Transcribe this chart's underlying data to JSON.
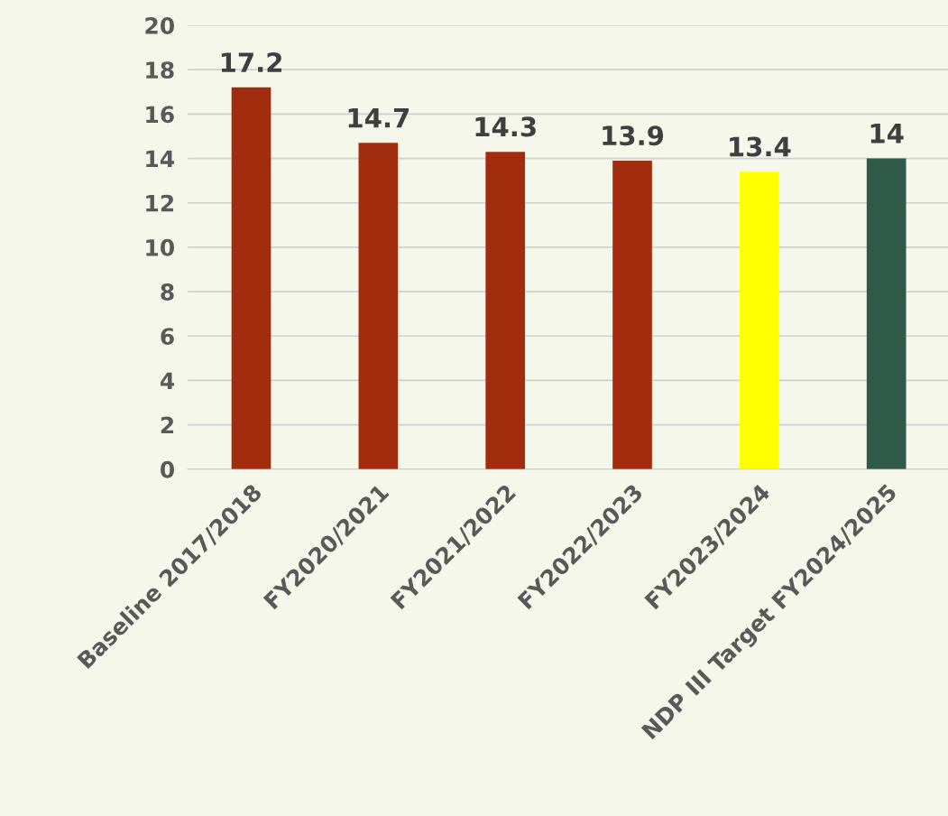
{
  "chart_data": {
    "type": "bar",
    "categories": [
      "Baseline 2017/2018",
      "FY2020/2021",
      "FY2021/2022",
      "FY2022/2023",
      "FY2023/2024",
      "NDP III Target FY2024/2025"
    ],
    "values": [
      17.2,
      14.7,
      14.3,
      13.9,
      13.4,
      14
    ],
    "colors": [
      "#a22c0e",
      "#a22c0e",
      "#a22c0e",
      "#a22c0e",
      "#ffff00",
      "#2f5a48"
    ],
    "ylim": [
      0,
      20
    ],
    "yticks": [
      0,
      2,
      4,
      6,
      8,
      10,
      12,
      14,
      16,
      18,
      20
    ],
    "grid": "y",
    "data_labels": true
  }
}
